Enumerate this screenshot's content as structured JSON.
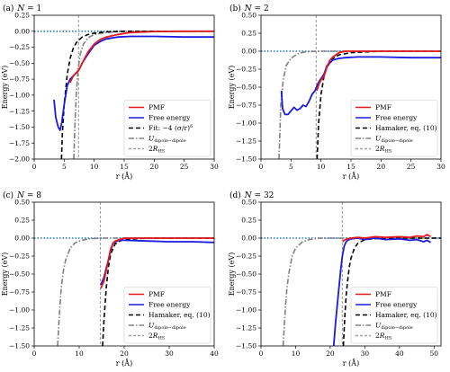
{
  "chart_data": [
    {
      "type": "line",
      "panel_label": "(a)",
      "title_prefix": "N = ",
      "N": "1",
      "xlabel": "r (Å)",
      "ylabel": "Energy (eV)",
      "xlim": [
        0,
        30
      ],
      "ylim": [
        -2.0,
        0.25
      ],
      "xticks": [
        0,
        5,
        10,
        15,
        20,
        25,
        30
      ],
      "yticks": [
        -2.0,
        -1.75,
        -1.5,
        -1.25,
        -1.0,
        -0.75,
        -0.5,
        -0.25,
        0.0,
        0.25
      ],
      "ytick_labels": [
        "−2.00",
        "−1.75",
        "−1.50",
        "−1.25",
        "−1.00",
        "−0.75",
        "−0.50",
        "−0.25",
        "0.00",
        "0.25"
      ],
      "legend_position": "lower-right",
      "hline_zero": {
        "y": 0,
        "color": "#1f77b4",
        "style": "dotted"
      },
      "vline_2RHS": 7.4,
      "series": [
        {
          "name": "PMF",
          "color": "#e41a1c",
          "style": "solid",
          "x": [
            6.0,
            6.5,
            7.0,
            7.5,
            8.0,
            9.0,
            10.0,
            11.0,
            12.0,
            14.0,
            16.0,
            20.0,
            25.0,
            30.0
          ],
          "y": [
            -0.8,
            -0.7,
            -0.65,
            -0.6,
            -0.5,
            -0.32,
            -0.2,
            -0.13,
            -0.09,
            -0.05,
            -0.02,
            -0.005,
            0.0,
            0.0
          ]
        },
        {
          "name": "Free energy",
          "color": "#1a1ae0",
          "style": "solid",
          "x": [
            3.3,
            3.6,
            4.0,
            4.3,
            4.6,
            5.0,
            5.5,
            6.0,
            6.5,
            7.0,
            7.5,
            8.0,
            9.0,
            10.0,
            11.0,
            12.0,
            14.0,
            16.0,
            20.0,
            25.0,
            30.0
          ],
          "y": [
            -1.07,
            -1.35,
            -1.5,
            -1.55,
            -1.42,
            -1.15,
            -0.85,
            -0.75,
            -0.7,
            -0.65,
            -0.6,
            -0.5,
            -0.35,
            -0.22,
            -0.16,
            -0.12,
            -0.09,
            -0.08,
            -0.08,
            -0.09,
            -0.09
          ]
        },
        {
          "name": "Fit: −4 (σ/r)⁶",
          "name_parts": {
            "prefix": "Fit: ",
            "body": "−4 (σ/r)",
            "sup": "6"
          },
          "color": "#000000",
          "style": "dashed",
          "x": [
            4.55,
            4.7,
            5.0,
            5.5,
            6.0,
            6.5,
            7.0,
            8.0,
            9.0,
            10.0,
            12.0,
            15.0,
            20.0,
            30.0
          ],
          "y": [
            -2.0,
            -1.6,
            -1.15,
            -0.68,
            -0.42,
            -0.27,
            -0.18,
            -0.09,
            -0.05,
            -0.03,
            -0.01,
            0.0,
            0.0,
            0.0
          ]
        },
        {
          "name": "U dipole−dipole",
          "name_parts": {
            "main": "U",
            "sub": "dipole−dipole"
          },
          "color": "#808080",
          "style": "dashdot",
          "x": [
            6.6,
            6.8,
            7.0,
            7.3,
            7.7,
            8.2,
            9.0,
            10.0,
            12.0,
            15.0,
            20.0,
            30.0
          ],
          "y": [
            -2.0,
            -1.45,
            -1.0,
            -0.6,
            -0.35,
            -0.2,
            -0.1,
            -0.05,
            -0.02,
            0.0,
            0.0,
            0.0
          ]
        }
      ]
    },
    {
      "type": "line",
      "panel_label": "(b)",
      "title_prefix": "N = ",
      "N": "2",
      "xlabel": "r (Å)",
      "ylabel": "Energy (eV)",
      "xlim": [
        0,
        30
      ],
      "ylim": [
        -1.5,
        0.5
      ],
      "xticks": [
        0,
        5,
        10,
        15,
        20,
        25,
        30
      ],
      "yticks": [
        -1.5,
        -1.25,
        -1.0,
        -0.75,
        -0.5,
        -0.25,
        0.0,
        0.25,
        0.5
      ],
      "ytick_labels": [
        "−1.50",
        "−1.25",
        "−1.00",
        "−0.75",
        "−0.50",
        "−0.25",
        "0.00",
        "0.25",
        "0.50"
      ],
      "legend_position": "lower-right",
      "hline_zero": {
        "y": 0,
        "color": "#1f77b4",
        "style": "dotted"
      },
      "vline_2RHS": 9.2,
      "series": [
        {
          "name": "PMF",
          "color": "#e41a1c",
          "style": "solid",
          "x": [
            9.3,
            9.7,
            10.0,
            10.5,
            11.0,
            11.5,
            12.0,
            12.5,
            13.0,
            14.0,
            15.0,
            17.0,
            20.0,
            25.0,
            30.0
          ],
          "y": [
            -0.55,
            -0.45,
            -0.4,
            -0.35,
            -0.22,
            -0.12,
            -0.08,
            -0.05,
            -0.02,
            0.0,
            0.0,
            0.0,
            0.0,
            0.0,
            0.0
          ]
        },
        {
          "name": "Free energy",
          "color": "#1a1ae0",
          "style": "solid",
          "x": [
            3.4,
            3.6,
            4.0,
            4.5,
            5.0,
            5.5,
            6.0,
            6.5,
            7.0,
            7.5,
            8.0,
            8.5,
            9.0,
            9.5,
            10.0,
            10.5,
            11.0,
            12.0,
            13.0,
            14.0,
            16.0,
            20.0,
            25.0,
            30.0
          ],
          "y": [
            -0.55,
            -0.8,
            -0.88,
            -0.88,
            -0.83,
            -0.78,
            -0.82,
            -0.8,
            -0.75,
            -0.77,
            -0.7,
            -0.6,
            -0.55,
            -0.45,
            -0.38,
            -0.32,
            -0.2,
            -0.12,
            -0.1,
            -0.09,
            -0.08,
            -0.08,
            -0.09,
            -0.09
          ]
        },
        {
          "name": "Hamaker, eq. (10)",
          "color": "#000000",
          "style": "dashed",
          "x": [
            9.35,
            9.6,
            10.0,
            10.5,
            11.0,
            12.0,
            13.0,
            15.0,
            20.0,
            30.0
          ],
          "y": [
            -1.5,
            -1.0,
            -0.6,
            -0.35,
            -0.22,
            -0.1,
            -0.05,
            -0.02,
            0.0,
            0.0
          ]
        },
        {
          "name": "U dipole−dipole",
          "name_parts": {
            "main": "U",
            "sub": "dipole−dipole"
          },
          "color": "#808080",
          "style": "dashdot",
          "x": [
            3.0,
            3.3,
            3.7,
            4.2,
            5.0,
            6.0,
            7.0,
            8.0,
            10.0,
            15.0,
            30.0
          ],
          "y": [
            -1.5,
            -0.75,
            -0.4,
            -0.2,
            -0.1,
            -0.04,
            -0.015,
            -0.005,
            0.0,
            0.0,
            0.0
          ]
        }
      ]
    },
    {
      "type": "line",
      "panel_label": "(c)",
      "title_prefix": "N = ",
      "N": "8",
      "xlabel": "r (Å)",
      "ylabel": "Energy (eV)",
      "xlim": [
        0,
        40
      ],
      "ylim": [
        -1.5,
        0.5
      ],
      "xticks": [
        0,
        10,
        20,
        30,
        40
      ],
      "yticks": [
        -1.5,
        -1.25,
        -1.0,
        -0.75,
        -0.5,
        -0.25,
        0.0,
        0.25,
        0.5
      ],
      "ytick_labels": [
        "−1.50",
        "−1.25",
        "−1.00",
        "−0.75",
        "−0.50",
        "−0.25",
        "0.00",
        "0.25",
        "0.50"
      ],
      "legend_position": "lower-right",
      "hline_zero": {
        "y": 0,
        "color": "#1f77b4",
        "style": "dotted"
      },
      "vline_2RHS": 14.7,
      "series": [
        {
          "name": "PMF",
          "color": "#e41a1c",
          "style": "solid",
          "x": [
            14.8,
            15.5,
            16.0,
            16.5,
            17.0,
            17.5,
            18.0,
            19.0,
            20.0,
            25.0,
            30.0,
            35.0,
            40.0
          ],
          "y": [
            -0.7,
            -0.6,
            -0.45,
            -0.3,
            -0.15,
            -0.07,
            -0.04,
            -0.02,
            0.0,
            0.0,
            0.0,
            0.0,
            0.0
          ]
        },
        {
          "name": "Free energy",
          "color": "#1a1ae0",
          "style": "solid",
          "x": [
            14.8,
            15.5,
            16.0,
            16.5,
            17.0,
            17.5,
            18.0,
            19.0,
            20.0,
            25.0,
            30.0,
            35.0,
            40.0
          ],
          "y": [
            -0.65,
            -0.55,
            -0.42,
            -0.3,
            -0.17,
            -0.08,
            -0.05,
            -0.03,
            -0.03,
            -0.04,
            -0.05,
            -0.05,
            -0.06
          ]
        },
        {
          "name": "Hamaker, eq. (10)",
          "color": "#000000",
          "style": "dashed",
          "x": [
            15.2,
            15.5,
            16.0,
            16.5,
            17.0,
            18.0,
            19.0,
            20.0,
            25.0,
            40.0
          ],
          "y": [
            -1.5,
            -1.15,
            -0.7,
            -0.4,
            -0.22,
            -0.08,
            -0.04,
            -0.02,
            0.0,
            0.0
          ]
        },
        {
          "name": "U dipole−dipole",
          "name_parts": {
            "main": "U",
            "sub": "dipole−dipole"
          },
          "color": "#808080",
          "style": "dashdot",
          "x": [
            5.2,
            5.6,
            6.0,
            6.5,
            7.0,
            8.0,
            9.0,
            10.0,
            12.0,
            15.0,
            20.0,
            40.0
          ],
          "y": [
            -1.5,
            -1.05,
            -0.7,
            -0.45,
            -0.3,
            -0.14,
            -0.07,
            -0.04,
            -0.01,
            0.0,
            0.0,
            0.0
          ]
        }
      ]
    },
    {
      "type": "line",
      "panel_label": "(d)",
      "title_prefix": "N = ",
      "N": "32",
      "xlabel": "r (Å)",
      "ylabel": "Energy (eV)",
      "xlim": [
        0,
        52
      ],
      "ylim": [
        -1.5,
        0.5
      ],
      "xticks": [
        0,
        10,
        20,
        30,
        40,
        50
      ],
      "yticks": [
        -1.5,
        -1.25,
        -1.0,
        -0.75,
        -0.5,
        -0.25,
        0.0,
        0.25,
        0.5
      ],
      "ytick_labels": [
        "−1.50",
        "−1.25",
        "−1.00",
        "−0.75",
        "−0.50",
        "−0.25",
        "0.00",
        "0.25",
        "0.50"
      ],
      "legend_position": "lower-right",
      "hline_zero": {
        "y": 0,
        "color": "#1f77b4",
        "style": "dotted"
      },
      "vline_2RHS": 23.5,
      "series": [
        {
          "name": "PMF",
          "color": "#e41a1c",
          "style": "solid",
          "x": [
            23.6,
            24.0,
            24.5,
            25.0,
            26.0,
            28.0,
            30.0,
            33.0,
            36.0,
            40.0,
            43.0,
            45.0,
            47.0,
            48.0,
            49.0
          ],
          "y": [
            -0.05,
            -0.03,
            -0.02,
            -0.01,
            0.0,
            0.01,
            0.0,
            0.02,
            0.01,
            0.02,
            0.01,
            0.03,
            0.02,
            0.05,
            0.02
          ]
        },
        {
          "name": "Free energy",
          "color": "#1a1ae0",
          "style": "solid",
          "x": [
            21.0,
            21.5,
            22.0,
            22.5,
            23.0,
            23.5,
            24.0,
            24.5,
            25.0,
            26.0,
            28.0,
            30.0,
            33.0,
            36.0,
            40.0,
            43.0,
            45.0,
            47.0,
            48.0,
            49.0
          ],
          "y": [
            -1.5,
            -1.2,
            -0.95,
            -0.7,
            -0.45,
            -0.25,
            -0.12,
            -0.06,
            -0.03,
            -0.01,
            0.0,
            -0.02,
            0.0,
            -0.02,
            -0.01,
            -0.03,
            -0.02,
            -0.05,
            -0.03,
            -0.06
          ]
        },
        {
          "name": "Hamaker, eq. (10)",
          "color": "#000000",
          "style": "dashed",
          "x": [
            23.8,
            24.2,
            24.6,
            25.0,
            25.5,
            26.0,
            27.0,
            28.0,
            30.0,
            35.0,
            52.0
          ],
          "y": [
            -1.5,
            -1.1,
            -0.8,
            -0.6,
            -0.4,
            -0.28,
            -0.14,
            -0.07,
            -0.02,
            0.0,
            0.0
          ]
        },
        {
          "name": "U dipole−dipole",
          "name_parts": {
            "main": "U",
            "sub": "dipole−dipole"
          },
          "color": "#808080",
          "style": "dashdot",
          "x": [
            6.4,
            7.0,
            7.5,
            8.0,
            9.0,
            10.0,
            12.0,
            14.0,
            17.0,
            20.0,
            25.0,
            52.0
          ],
          "y": [
            -1.5,
            -1.0,
            -0.7,
            -0.5,
            -0.25,
            -0.14,
            -0.05,
            -0.02,
            0.0,
            0.0,
            0.0,
            0.0
          ]
        }
      ]
    }
  ]
}
